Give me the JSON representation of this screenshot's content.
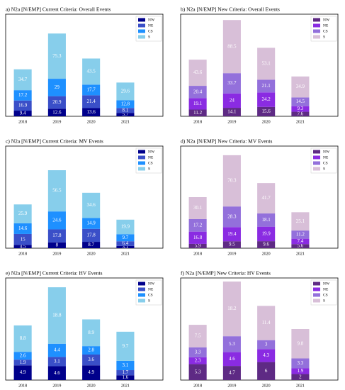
{
  "chart_data": [
    {
      "type": "bar",
      "stacked": true,
      "title": "a) N2a [N/EMP] Current Criteria: Overall Events",
      "categories": [
        "2018",
        "2019",
        "2020",
        "2021"
      ],
      "ylim": [
        0,
        170
      ],
      "legend": "upper right",
      "series": [
        {
          "name": "NW",
          "color": "#00008b",
          "values": [
            9.4,
            12.6,
            13.6,
            5.7
          ]
        },
        {
          "name": "NE",
          "color": "#3a4fc8",
          "values": [
            16.9,
            20.9,
            21.4,
            8.1
          ]
        },
        {
          "name": "CS",
          "color": "#1e90ff",
          "values": [
            17.2,
            29.0,
            17.7,
            12.8
          ]
        },
        {
          "name": "S",
          "color": "#87ceeb",
          "values": [
            34.7,
            75.3,
            43.5,
            29.6
          ]
        }
      ]
    },
    {
      "type": "bar",
      "stacked": true,
      "title": "b) N2a [N/EMP] New Criteria: Overall Events",
      "categories": [
        "2018",
        "2019",
        "2020",
        "2021"
      ],
      "ylim": [
        0,
        170
      ],
      "legend": "upper right",
      "series": [
        {
          "name": "NW",
          "color": "#5e2a84",
          "values": [
            11.2,
            14.1,
            15.6,
            7.6
          ]
        },
        {
          "name": "NE",
          "color": "#8a2be2",
          "values": [
            19.1,
            24.0,
            24.2,
            9.3
          ]
        },
        {
          "name": "CS",
          "color": "#9370db",
          "values": [
            20.4,
            33.7,
            21.1,
            14.5
          ]
        },
        {
          "name": "S",
          "color": "#d8bfd8",
          "values": [
            43.6,
            88.5,
            53.1,
            34.9
          ]
        }
      ]
    },
    {
      "type": "bar",
      "stacked": true,
      "title": "c) N2a [N/EMP] Current Criteria: MV Events",
      "categories": [
        "2018",
        "2019",
        "2020",
        "2021"
      ],
      "ylim": [
        0,
        140
      ],
      "legend": "upper right",
      "series": [
        {
          "name": "NW",
          "color": "#00008b",
          "values": [
            4.5,
            8.0,
            8.7,
            3.1
          ]
        },
        {
          "name": "NE",
          "color": "#3a4fc8",
          "values": [
            15.0,
            17.8,
            17.8,
            6.4
          ]
        },
        {
          "name": "CS",
          "color": "#1e90ff",
          "values": [
            14.6,
            24.6,
            14.9,
            9.7
          ]
        },
        {
          "name": "S",
          "color": "#87ceeb",
          "values": [
            25.9,
            56.5,
            34.6,
            19.9
          ]
        }
      ]
    },
    {
      "type": "bar",
      "stacked": true,
      "title": "d) N2a [N/EMP] New Criteria: MV Events",
      "categories": [
        "2018",
        "2019",
        "2020",
        "2021"
      ],
      "ylim": [
        0,
        140
      ],
      "legend": "upper right",
      "series": [
        {
          "name": "NW",
          "color": "#5e2a84",
          "values": [
            5.9,
            9.5,
            9.6,
            5.6
          ]
        },
        {
          "name": "NE",
          "color": "#8a2be2",
          "values": [
            16.8,
            19.4,
            19.9,
            7.4
          ]
        },
        {
          "name": "CS",
          "color": "#9370db",
          "values": [
            17.2,
            28.3,
            18.1,
            11.2
          ]
        },
        {
          "name": "S",
          "color": "#d8bfd8",
          "values": [
            30.1,
            70.3,
            41.7,
            25.1
          ]
        }
      ]
    },
    {
      "type": "bar",
      "stacked": true,
      "title": "e) N2a [N/EMP] Current Criteria: HV Events",
      "categories": [
        "2018",
        "2019",
        "2020",
        "2021"
      ],
      "ylim": [
        0,
        34
      ],
      "legend": "upper right",
      "series": [
        {
          "name": "NW",
          "color": "#00008b",
          "values": [
            4.9,
            4.6,
            4.9,
            1.6
          ]
        },
        {
          "name": "NE",
          "color": "#3a4fc8",
          "values": [
            1.9,
            3.1,
            3.6,
            1.7
          ]
        },
        {
          "name": "CS",
          "color": "#1e90ff",
          "values": [
            2.6,
            4.4,
            2.8,
            3.1
          ]
        },
        {
          "name": "S",
          "color": "#87ceeb",
          "values": [
            8.8,
            18.8,
            8.9,
            9.7
          ]
        }
      ]
    },
    {
      "type": "bar",
      "stacked": true,
      "title": "f) N2a [N/EMP] New Criteria: HV Events",
      "categories": [
        "2018",
        "2019",
        "2020",
        "2021"
      ],
      "ylim": [
        0,
        34
      ],
      "legend": "upper right",
      "series": [
        {
          "name": "NW",
          "color": "#5e2a84",
          "values": [
            5.3,
            4.7,
            6.0,
            2.0
          ]
        },
        {
          "name": "NE",
          "color": "#8a2be2",
          "values": [
            2.3,
            4.6,
            4.3,
            1.9
          ]
        },
        {
          "name": "CS",
          "color": "#9370db",
          "values": [
            3.3,
            5.3,
            3.0,
            3.3
          ]
        },
        {
          "name": "S",
          "color": "#d8bfd8",
          "values": [
            7.5,
            18.2,
            11.4,
            9.8
          ]
        }
      ]
    }
  ]
}
